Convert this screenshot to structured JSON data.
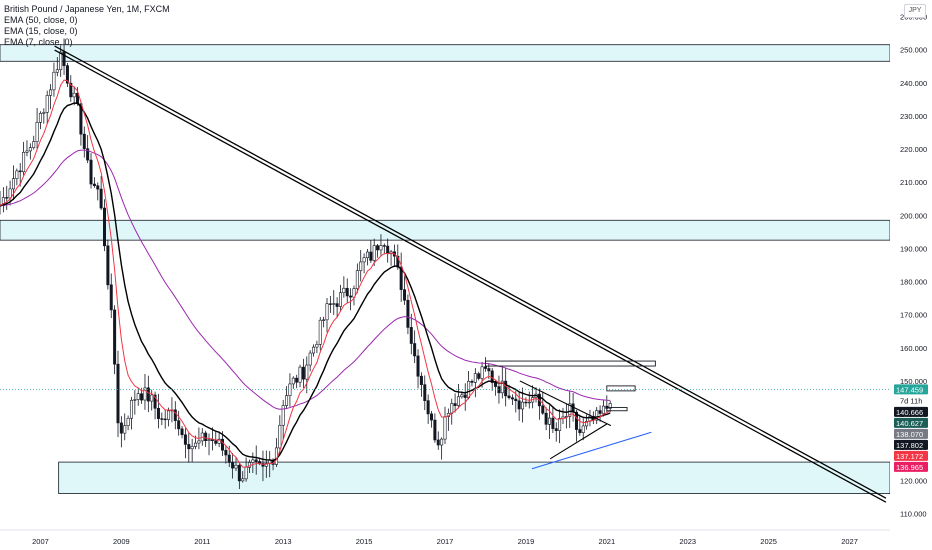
{
  "legend": {
    "title": "British Pound / Japanese Yen, 1M, FXCM",
    "indicators": [
      "EMA (50, close, 0)",
      "EMA (15, close, 0)",
      "EMA (7, close, 0)"
    ]
  },
  "currency": "JPY",
  "countdown": "7d 11h",
  "chart_data": {
    "type": "candlestick",
    "title": "British Pound / Japanese Yen, 1M, FXCM",
    "timeframe": "1M",
    "source": "FXCM",
    "xlim": [
      2006.0,
      2028.0
    ],
    "ylim": [
      105,
      265
    ],
    "y_ticks": [
      110,
      120,
      130,
      140,
      150,
      160,
      170,
      180,
      190,
      200,
      210,
      220,
      230,
      240,
      250,
      260
    ],
    "x_ticks": [
      2007,
      2009,
      2011,
      2013,
      2015,
      2017,
      2019,
      2021,
      2023,
      2025,
      2027
    ],
    "price_anchors": [
      [
        2006.0,
        203
      ],
      [
        2006.4,
        213
      ],
      [
        2006.8,
        222
      ],
      [
        2007.05,
        232
      ],
      [
        2007.3,
        241
      ],
      [
        2007.5,
        249
      ],
      [
        2007.7,
        240
      ],
      [
        2007.95,
        230
      ],
      [
        2008.2,
        212
      ],
      [
        2008.45,
        207
      ],
      [
        2008.6,
        190
      ],
      [
        2008.8,
        162
      ],
      [
        2008.95,
        132
      ],
      [
        2009.15,
        140
      ],
      [
        2009.4,
        147
      ],
      [
        2009.7,
        145
      ],
      [
        2010.0,
        138
      ],
      [
        2010.3,
        141
      ],
      [
        2010.5,
        134
      ],
      [
        2010.8,
        130
      ],
      [
        2011.1,
        133
      ],
      [
        2011.4,
        131
      ],
      [
        2011.7,
        126
      ],
      [
        2011.95,
        121
      ],
      [
        2012.2,
        124
      ],
      [
        2012.5,
        123
      ],
      [
        2012.8,
        128
      ],
      [
        2013.0,
        144
      ],
      [
        2013.2,
        149
      ],
      [
        2013.5,
        153
      ],
      [
        2013.8,
        162
      ],
      [
        2014.1,
        172
      ],
      [
        2014.4,
        175
      ],
      [
        2014.7,
        178
      ],
      [
        2014.95,
        186
      ],
      [
        2015.2,
        188
      ],
      [
        2015.45,
        194
      ],
      [
        2015.7,
        188
      ],
      [
        2015.95,
        178
      ],
      [
        2016.2,
        160
      ],
      [
        2016.45,
        148
      ],
      [
        2016.7,
        135
      ],
      [
        2016.85,
        132
      ],
      [
        2017.1,
        143
      ],
      [
        2017.4,
        146
      ],
      [
        2017.75,
        151
      ],
      [
        2018.05,
        153
      ],
      [
        2018.25,
        149
      ],
      [
        2018.6,
        147
      ],
      [
        2018.9,
        143
      ],
      [
        2019.2,
        145
      ],
      [
        2019.45,
        140
      ],
      [
        2019.7,
        134
      ],
      [
        2019.9,
        138
      ],
      [
        2020.1,
        141
      ],
      [
        2020.3,
        134
      ],
      [
        2020.55,
        137
      ],
      [
        2020.8,
        139
      ],
      [
        2021.0,
        142
      ],
      [
        2021.15,
        148
      ]
    ],
    "ema_series": [
      {
        "name": "EMA (50, close, 0)",
        "color": "#9c27b0"
      },
      {
        "name": "EMA (15, close, 0)",
        "color": "#000000"
      },
      {
        "name": "EMA (7, close, 0)",
        "color": "#f23645"
      }
    ],
    "zones": [
      {
        "from": 246.5,
        "to": 251.5,
        "x1": 2006.0,
        "x2": 2028.0
      },
      {
        "from": 192.5,
        "to": 198.5,
        "x1": 2006.0,
        "x2": 2028.0
      },
      {
        "from": 116.0,
        "to": 125.5,
        "x1": 2007.45,
        "x2": 2028.0
      }
    ],
    "trendlines": [
      {
        "x1": 2007.35,
        "y1": 250.5,
        "x2": 2027.9,
        "y2": 114.0,
        "color": "#000000",
        "double": true
      },
      {
        "x1": 2019.15,
        "y1": 123.5,
        "x2": 2022.1,
        "y2": 134.5,
        "color": "#2962ff",
        "double": false
      },
      {
        "x1": 2018.85,
        "y1": 150.0,
        "x2": 2021.1,
        "y2": 136.5,
        "color": "#000000",
        "double": false
      },
      {
        "x1": 2019.6,
        "y1": 126.5,
        "x2": 2021.0,
        "y2": 137.0,
        "color": "#000000",
        "double": false
      }
    ],
    "rects": [
      {
        "x1": 2018.0,
        "y1": 154.5,
        "x2": 2022.2,
        "y2": 156.0
      },
      {
        "x1": 2021.0,
        "y1": 147.0,
        "x2": 2021.7,
        "y2": 148.5
      },
      {
        "x1": 2021.0,
        "y1": 141.0,
        "x2": 2021.5,
        "y2": 142.0
      }
    ],
    "current_price_line": 147.459,
    "price_labels": [
      {
        "value": 147.459,
        "text": "147.459",
        "color": "#26a69a"
      },
      {
        "value": 140.666,
        "text": "140.666",
        "color": "#131722"
      },
      {
        "value": 140.627,
        "text": "140.627",
        "color": "#1b5e57"
      },
      {
        "value": 138.07,
        "text": "138.070",
        "color": "#787b86"
      },
      {
        "value": 137.802,
        "text": "137.802",
        "color": "#131722"
      },
      {
        "value": 137.172,
        "text": "137.172",
        "color": "#f23645"
      },
      {
        "value": 136.965,
        "text": "136.965",
        "color": "#e91e63"
      }
    ]
  }
}
